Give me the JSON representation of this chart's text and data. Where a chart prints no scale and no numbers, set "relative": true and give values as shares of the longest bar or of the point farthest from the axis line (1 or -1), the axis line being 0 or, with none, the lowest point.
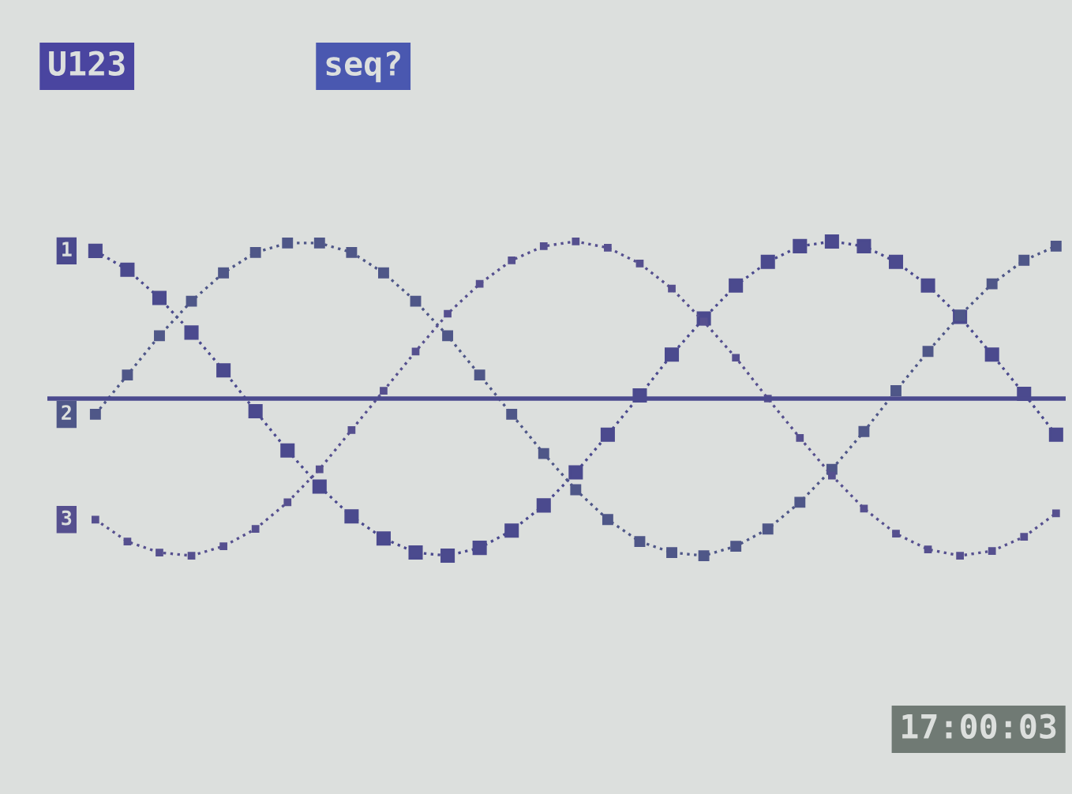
{
  "chart_data": {
    "type": "line",
    "relative": true,
    "grid": false,
    "legend": false,
    "marker": "square",
    "line_style": "dotted",
    "annotations": [
      "U123",
      "seq?",
      "17:00:03"
    ],
    "categories": [
      null,
      null,
      null,
      null,
      null,
      null,
      null,
      null,
      null,
      null,
      null,
      null,
      null,
      null,
      null,
      null,
      null,
      null,
      null,
      null,
      null,
      null,
      null,
      null,
      null,
      null,
      null,
      null,
      null,
      null,
      null
    ],
    "series": [
      {
        "name": "1",
        "color": "#4b4a8e",
        "values": [
          0.94,
          0.82,
          0.64,
          0.42,
          0.18,
          -0.08,
          -0.33,
          -0.56,
          -0.75,
          -0.89,
          -0.98,
          -1.0,
          -0.95,
          -0.84,
          -0.68,
          -0.47,
          -0.23,
          0.02,
          0.28,
          0.51,
          0.72,
          0.87,
          0.97,
          1.0,
          0.97,
          0.87,
          0.72,
          0.52,
          0.28,
          0.03,
          -0.23
        ]
      },
      {
        "name": "2",
        "color": "#4f5788",
        "values": [
          -0.1,
          0.15,
          0.4,
          0.62,
          0.8,
          0.93,
          0.99,
          0.99,
          0.93,
          0.8,
          0.62,
          0.4,
          0.15,
          -0.1,
          -0.35,
          -0.58,
          -0.77,
          -0.91,
          -0.98,
          -1.0,
          -0.94,
          -0.83,
          -0.66,
          -0.45,
          -0.21,
          0.05,
          0.3,
          0.53,
          0.73,
          0.88,
          0.97
        ]
      },
      {
        "name": "3",
        "color": "#56508f",
        "values": [
          -0.77,
          -0.91,
          -0.98,
          -1.0,
          -0.94,
          -0.83,
          -0.66,
          -0.45,
          -0.2,
          0.05,
          0.3,
          0.54,
          0.73,
          0.88,
          0.97,
          1.0,
          0.96,
          0.86,
          0.7,
          0.49,
          0.26,
          0.0,
          -0.25,
          -0.49,
          -0.7,
          -0.86,
          -0.96,
          -1.0,
          -0.97,
          -0.88,
          -0.73
        ]
      }
    ]
  }
}
